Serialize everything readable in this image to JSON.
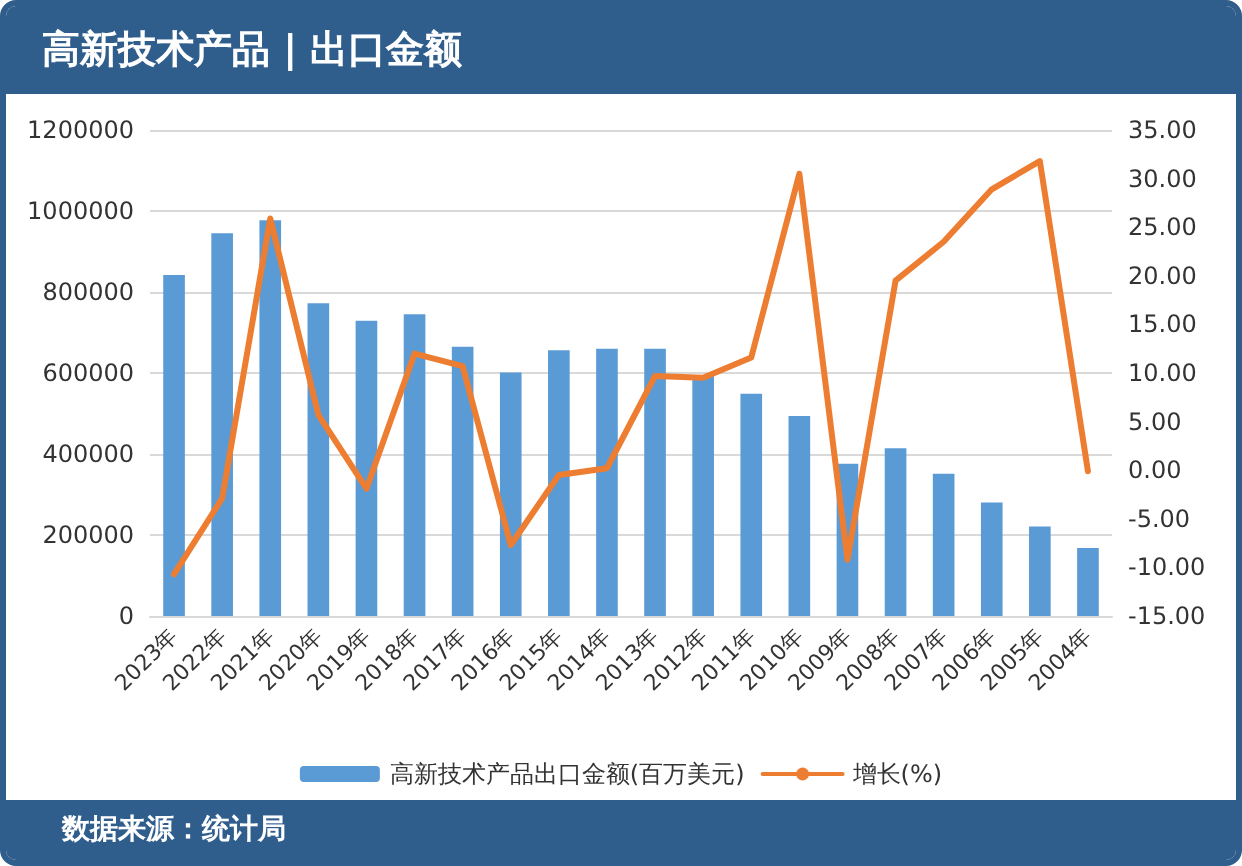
{
  "chart_data": {
    "type": "bar",
    "title": "高新技术产品 | 出口金额",
    "categories": [
      "2023年",
      "2022年",
      "2021年",
      "2020年",
      "2019年",
      "2018年",
      "2017年",
      "2016年",
      "2015年",
      "2014年",
      "2013年",
      "2012年",
      "2011年",
      "2010年",
      "2009年",
      "2008年",
      "2007年",
      "2006年",
      "2005年",
      "2004年"
    ],
    "series": [
      {
        "name": "高新技术产品出口金额(百万美元)",
        "color": "#5b9bd5",
        "values": [
          842000,
          945000,
          977000,
          772000,
          729000,
          745000,
          665000,
          601000,
          656000,
          660000,
          660000,
          594000,
          549000,
          494000,
          376000,
          414000,
          351000,
          280000,
          221000,
          168000
        ]
      },
      {
        "name": "增长(%)",
        "type": "line",
        "axis": "y2",
        "color": "#ed7d31",
        "values": [
          -10.7,
          -2.9,
          25.9,
          5.7,
          -1.9,
          12.0,
          10.7,
          -7.7,
          -0.5,
          0.2,
          9.7,
          9.5,
          11.6,
          30.5,
          -9.2,
          19.5,
          23.5,
          28.9,
          31.8,
          -0.1
        ]
      }
    ],
    "ylim": [
      0,
      1200000
    ],
    "yticks": [
      0,
      200000,
      400000,
      600000,
      800000,
      1000000,
      1200000
    ],
    "y2lim": [
      -15,
      35
    ],
    "y2ticks": [
      {
        "value": -15,
        "label": "-15.00"
      },
      {
        "value": -10,
        "label": "-10.00"
      },
      {
        "value": -5,
        "label": "-5.00"
      },
      {
        "value": 0,
        "label": "0.00"
      },
      {
        "value": 5,
        "label": "5.00"
      },
      {
        "value": 10,
        "label": "10.00"
      },
      {
        "value": 15,
        "label": "15.00"
      },
      {
        "value": 20,
        "label": "20.00"
      },
      {
        "value": 25,
        "label": "25.00"
      },
      {
        "value": 30,
        "label": "30.00"
      },
      {
        "value": 35,
        "label": "35.00"
      }
    ],
    "grid": "y",
    "legend": "bottom",
    "marker": "none",
    "line_style": "solid",
    "annotations": [
      "数据来源：统计局"
    ]
  }
}
